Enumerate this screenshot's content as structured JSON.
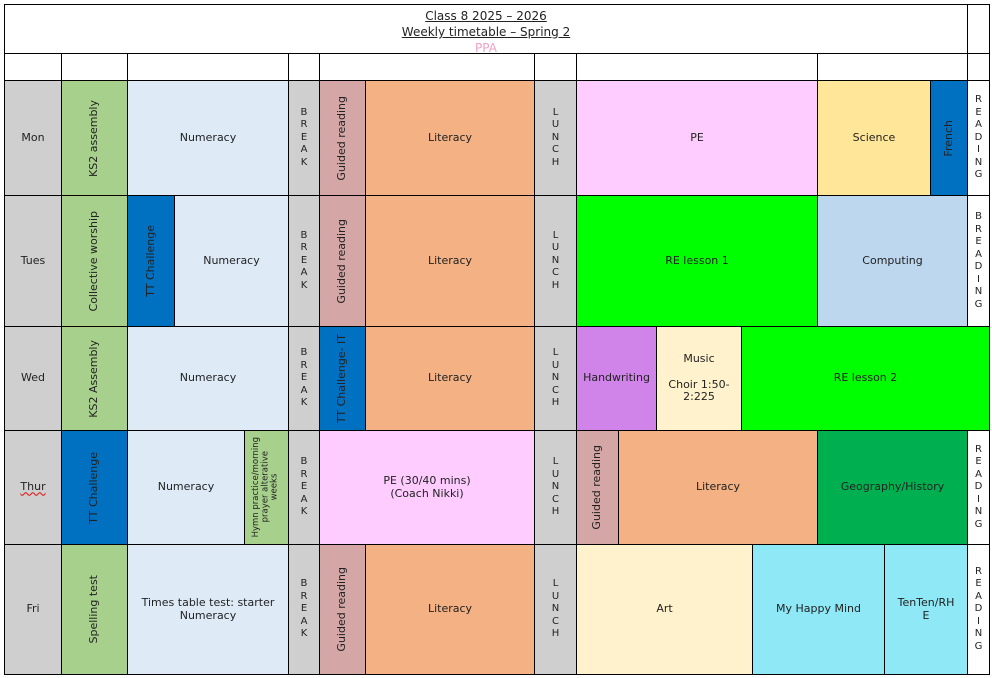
{
  "header": {
    "title": "Class 8 2025 – 2026",
    "subtitle": "Weekly timetable – Spring 2",
    "note": "PPA"
  },
  "colors": {
    "gray": "#d0cfcf",
    "green": "#a8d08d",
    "light_blue": "#deebf7",
    "rose": "#d5a6a6",
    "orange": "#f4b183",
    "pink": "#ffccff",
    "yellow": "#ffe699",
    "dark_blue": "#0070c0",
    "lime": "#00ff00",
    "steel": "#bdd7ee",
    "purple": "#d083e8",
    "cream": "#fff2cc",
    "dark_green": "#00b050",
    "cyan": "#8fe8f5"
  },
  "days": {
    "mon": "Mon",
    "tue": "Tues",
    "wed": "Wed",
    "thu": "Thur",
    "fri": "Fri"
  },
  "common": {
    "break": "B\nR\nE\nA\nK",
    "lunch": "L\nU\nN\nC\nH",
    "reading": "R\nE\nA\nD\nI\nN\nG",
    "reading_short": "B\nR\nE\nA\nD\nI\nN\nG"
  },
  "mon": {
    "assembly": "KS2 assembly",
    "numeracy": "Numeracy",
    "guided": "Guided reading",
    "literacy": "Literacy",
    "pe": "PE",
    "science": "Science",
    "french": "French"
  },
  "tue": {
    "worship": "Collective worship",
    "tt": "TT Challenge",
    "numeracy": "Numeracy",
    "guided": "Guided reading",
    "literacy": "Literacy",
    "re": "RE lesson 1",
    "computing": "Computing"
  },
  "wed": {
    "assembly": "KS2 Assembly",
    "numeracy": "Numeracy",
    "tt": "TT Challenge- IT",
    "literacy": "Literacy",
    "handwriting": "Handwriting",
    "music": "Music\n\nChoir 1:50-\n2:225",
    "re": "RE lesson 2"
  },
  "thu": {
    "tt": "TT Challenge",
    "numeracy": "Numeracy",
    "hymn": "Hymn practice/morning\nprayer alterative\nweeks",
    "pe": "PE (30/40 mins)\n(Coach Nikki)",
    "guided": "Guided reading",
    "literacy": "Literacy",
    "geo": "Geography/History"
  },
  "fri": {
    "spelling": "Spelling test",
    "times": "Times table test: starter\nNumeracy",
    "guided": "Guided reading",
    "literacy": "Literacy",
    "art": "Art",
    "happy": "My Happy Mind",
    "tenten": "TenTen/RH\nE"
  }
}
